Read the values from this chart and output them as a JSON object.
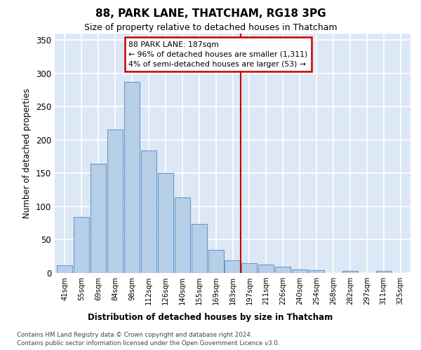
{
  "title": "88, PARK LANE, THATCHAM, RG18 3PG",
  "subtitle": "Size of property relative to detached houses in Thatcham",
  "xlabel_bottom": "Distribution of detached houses by size in Thatcham",
  "ylabel": "Number of detached properties",
  "categories": [
    "41sqm",
    "55sqm",
    "69sqm",
    "84sqm",
    "98sqm",
    "112sqm",
    "126sqm",
    "140sqm",
    "155sqm",
    "169sqm",
    "183sqm",
    "197sqm",
    "211sqm",
    "226sqm",
    "240sqm",
    "254sqm",
    "268sqm",
    "282sqm",
    "297sqm",
    "311sqm",
    "325sqm"
  ],
  "values": [
    12,
    84,
    164,
    216,
    287,
    184,
    150,
    113,
    74,
    35,
    19,
    15,
    13,
    9,
    5,
    4,
    0,
    3,
    0,
    3,
    0
  ],
  "bar_color": "#b8cfe8",
  "bar_edgecolor": "#6699cc",
  "fig_background_color": "#ffffff",
  "axes_background_color": "#dce8f5",
  "grid_color": "#ffffff",
  "annotation_line1": "88 PARK LANE: 187sqm",
  "annotation_line2": "← 96% of detached houses are smaller (1,311)",
  "annotation_line3": "4% of semi-detached houses are larger (53) →",
  "vline_color": "#cc0000",
  "annotation_box_color": "#cc0000",
  "ylim": [
    0,
    360
  ],
  "yticks": [
    0,
    50,
    100,
    150,
    200,
    250,
    300,
    350
  ],
  "footer_line1": "Contains HM Land Registry data © Crown copyright and database right 2024.",
  "footer_line2": "Contains public sector information licensed under the Open Government Licence v3.0."
}
